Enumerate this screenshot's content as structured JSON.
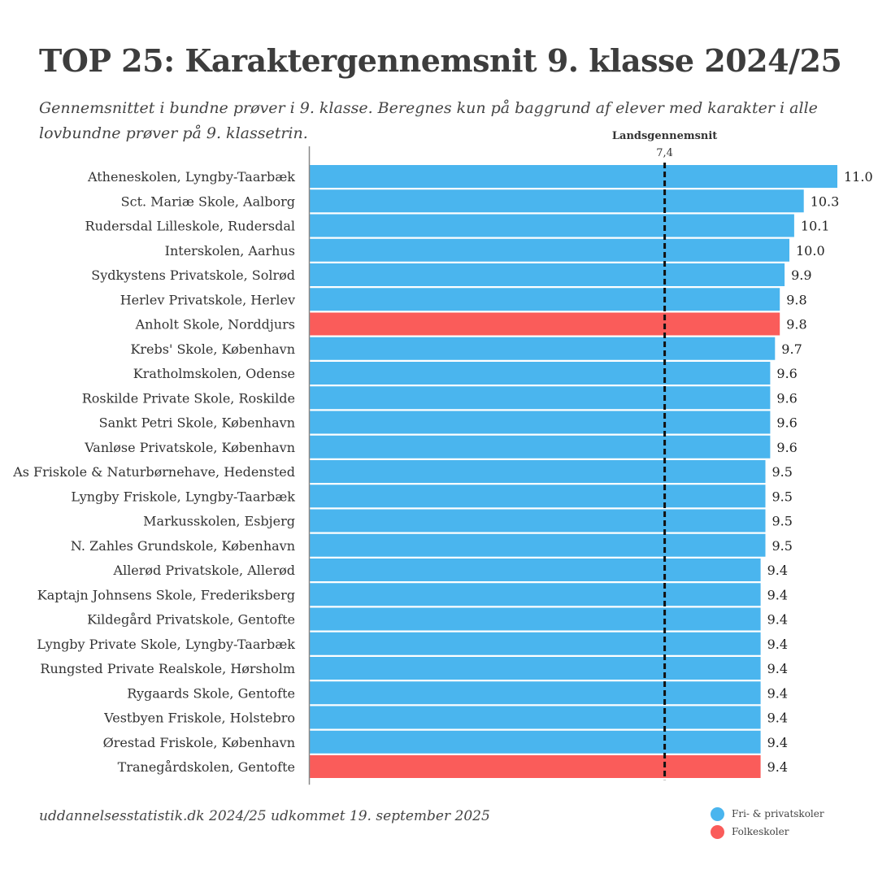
{
  "title": "TOP 25: Karaktergennemsnit 9. klasse 2024/25",
  "subtitle": "Gennemsnittet i bundne prøver i 9. klasse. Beregnes kun på baggrund af elever med karakter i alle lovbundne prøver på 9. klassetrin.",
  "source": "uddannelsesstatistik.dk 2024/25 udkommet 19. september 2025",
  "colors": {
    "private": "#4ab5ee",
    "public": "#fa5c5a",
    "reference": "#111111"
  },
  "legend": [
    {
      "label": "Fri- & privatskoler",
      "color": "#4ab5ee"
    },
    {
      "label": "Folkeskoler",
      "color": "#fa5c5a"
    }
  ],
  "chart_data": {
    "type": "bar",
    "orientation": "horizontal",
    "xlim": [
      0,
      11.0
    ],
    "grid": false,
    "legend_position": "bottom-right",
    "reference_line": {
      "label": "Landsgennemsnit",
      "value": 7.4,
      "value_label": "7,4"
    },
    "categories": [
      "Atheneskolen, Lyngby-Taarbæk",
      "Sct. Mariæ Skole, Aalborg",
      "Rudersdal Lilleskole, Rudersdal",
      "Interskolen, Aarhus",
      "Sydkystens Privatskole, Solrød",
      "Herlev Privatskole, Herlev",
      "Anholt Skole, Norddjurs",
      "Krebs' Skole, København",
      "Kratholmskolen, Odense",
      "Roskilde Private Skole, Roskilde",
      "Sankt Petri Skole, København",
      "Vanløse Privatskole, København",
      "As Friskole & Naturbørnehave, Hedensted",
      "Lyngby Friskole, Lyngby-Taarbæk",
      "Markusskolen, Esbjerg",
      "N. Zahles Grundskole, København",
      "Allerød Privatskole, Allerød",
      "Kaptajn Johnsens Skole, Frederiksberg",
      "Kildegård Privatskole, Gentofte",
      "Lyngby Private Skole, Lyngby-Taarbæk",
      "Rungsted Private Realskole, Hørsholm",
      "Rygaards Skole, Gentofte",
      "Vestbyen Friskole, Holstebro",
      "Ørestad Friskole, København",
      "Tranegårdskolen, Gentofte"
    ],
    "values": [
      11.0,
      10.3,
      10.1,
      10.0,
      9.9,
      9.8,
      9.8,
      9.7,
      9.6,
      9.6,
      9.6,
      9.6,
      9.5,
      9.5,
      9.5,
      9.5,
      9.4,
      9.4,
      9.4,
      9.4,
      9.4,
      9.4,
      9.4,
      9.4,
      9.4
    ],
    "value_labels": [
      "11.0",
      "10.3",
      "10.1",
      "10.0",
      "9.9",
      "9.8",
      "9.8",
      "9.7",
      "9.6",
      "9.6",
      "9.6",
      "9.6",
      "9.5",
      "9.5",
      "9.5",
      "9.5",
      "9.4",
      "9.4",
      "9.4",
      "9.4",
      "9.4",
      "9.4",
      "9.4",
      "9.4",
      "9.4"
    ],
    "school_type": [
      "Fri- & privatskoler",
      "Fri- & privatskoler",
      "Fri- & privatskoler",
      "Fri- & privatskoler",
      "Fri- & privatskoler",
      "Fri- & privatskoler",
      "Folkeskoler",
      "Fri- & privatskoler",
      "Fri- & privatskoler",
      "Fri- & privatskoler",
      "Fri- & privatskoler",
      "Fri- & privatskoler",
      "Fri- & privatskoler",
      "Fri- & privatskoler",
      "Fri- & privatskoler",
      "Fri- & privatskoler",
      "Fri- & privatskoler",
      "Fri- & privatskoler",
      "Fri- & privatskoler",
      "Fri- & privatskoler",
      "Fri- & privatskoler",
      "Fri- & privatskoler",
      "Fri- & privatskoler",
      "Fri- & privatskoler",
      "Folkeskoler"
    ]
  }
}
